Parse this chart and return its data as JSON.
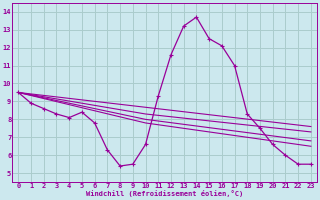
{
  "xlabel": "Windchill (Refroidissement éolien,°C)",
  "bg_color": "#cce8ee",
  "grid_color": "#aacccc",
  "line_color": "#990099",
  "markersize": 2.5,
  "xlim": [
    -0.5,
    23.5
  ],
  "ylim": [
    4.5,
    14.5
  ],
  "yticks": [
    5,
    6,
    7,
    8,
    9,
    10,
    11,
    12,
    13,
    14
  ],
  "xticks": [
    0,
    1,
    2,
    3,
    4,
    5,
    6,
    7,
    8,
    9,
    10,
    11,
    12,
    13,
    14,
    15,
    16,
    17,
    18,
    19,
    20,
    21,
    22,
    23
  ],
  "line1_x": [
    0,
    1,
    2,
    3,
    4,
    5,
    6,
    7,
    8,
    9,
    10,
    11,
    12,
    13,
    14,
    15,
    16,
    17,
    18,
    19,
    20,
    21,
    22,
    23
  ],
  "line1_y": [
    9.5,
    8.9,
    8.6,
    8.3,
    8.1,
    8.4,
    7.8,
    6.3,
    5.4,
    5.5,
    6.6,
    9.3,
    11.6,
    13.2,
    13.7,
    12.5,
    12.1,
    11.0,
    8.3,
    7.5,
    6.6,
    6.0,
    5.5,
    5.5
  ],
  "line2_x": [
    0,
    23
  ],
  "line2_y": [
    9.5,
    7.6
  ],
  "line3_x": [
    0,
    10,
    23
  ],
  "line3_y": [
    9.5,
    8.3,
    7.3
  ],
  "line4_x": [
    0,
    10,
    23
  ],
  "line4_y": [
    9.5,
    8.0,
    6.8
  ],
  "line5_x": [
    0,
    10,
    23
  ],
  "line5_y": [
    9.5,
    7.8,
    6.5
  ]
}
